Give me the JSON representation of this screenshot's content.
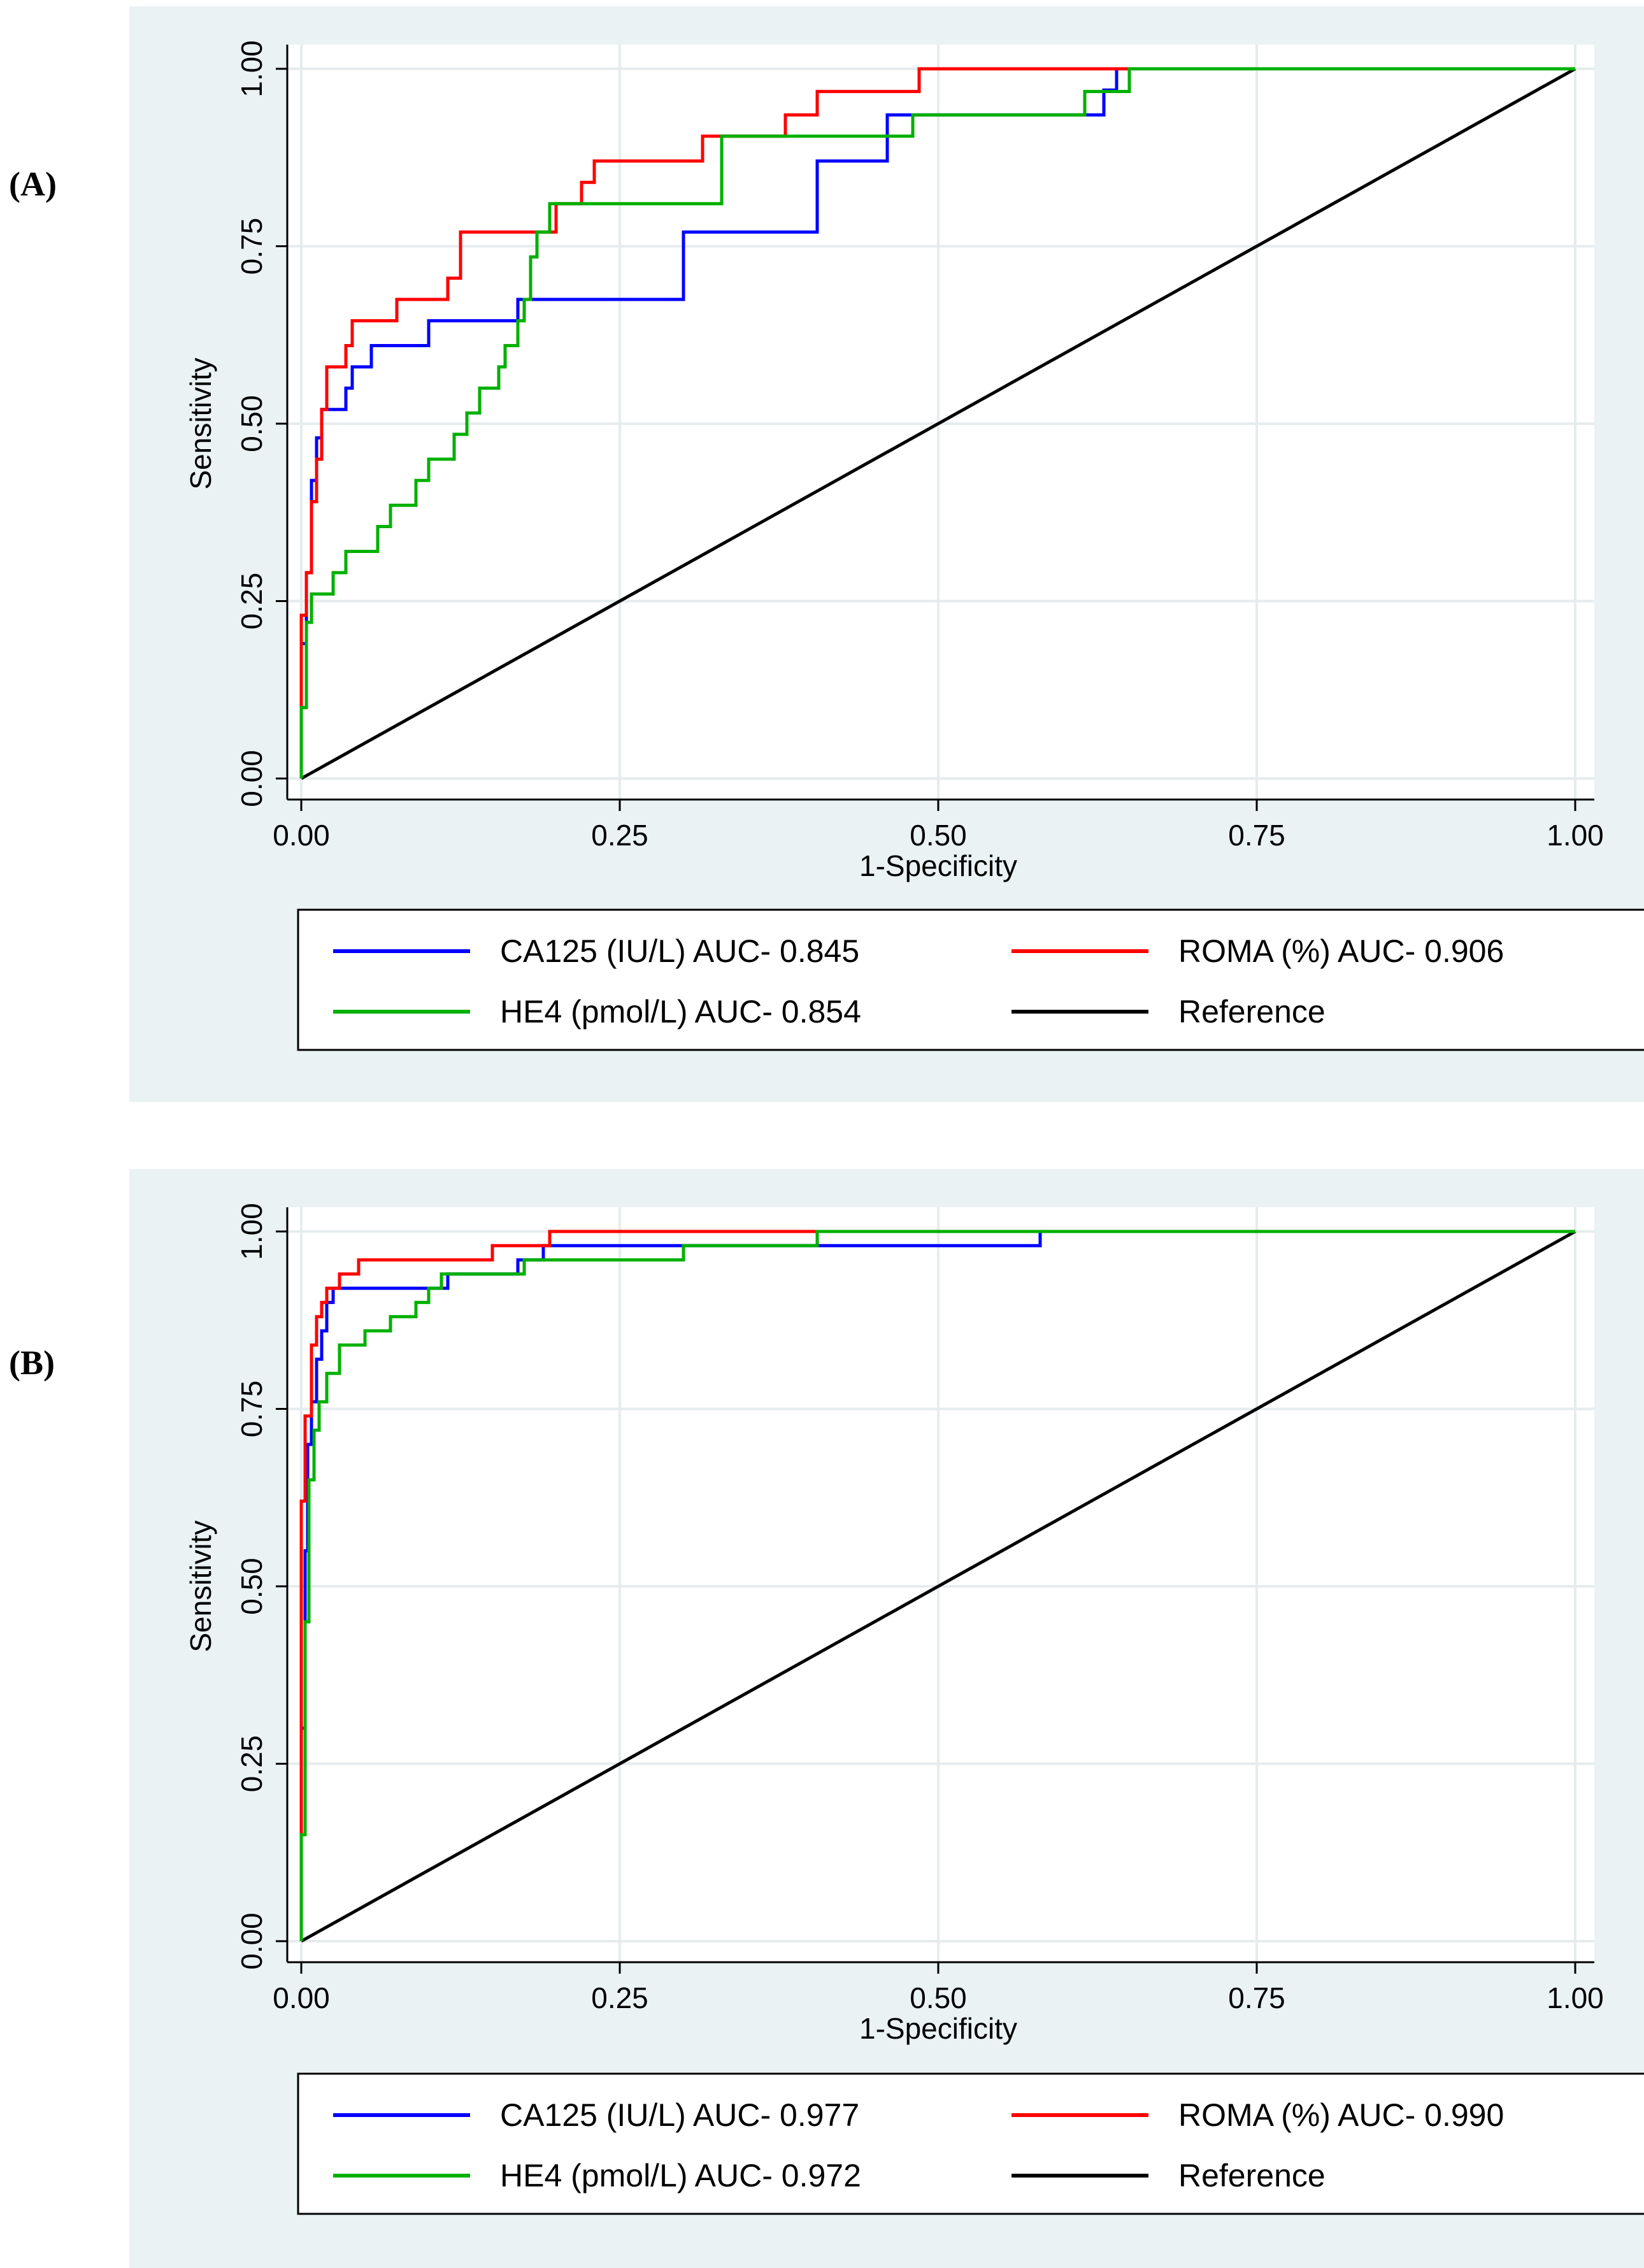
{
  "panels": [
    {
      "label": "(A)"
    },
    {
      "label": "(B)"
    }
  ],
  "chart_data": [
    {
      "type": "line",
      "panel_label": "(A)",
      "xlabel": "1-Specificity",
      "ylabel": "Sensitivity",
      "xlim": [
        0,
        1
      ],
      "ylim": [
        0,
        1
      ],
      "xticks": [
        "0.00",
        "0.25",
        "0.50",
        "0.75",
        "1.00"
      ],
      "yticks": [
        "0.00",
        "0.25",
        "0.50",
        "0.75",
        "1.00"
      ],
      "grid": true,
      "legend_position": "bottom",
      "series": [
        {
          "name": "CA125 (IU/L) AUC- 0.845",
          "color": "#0000ff",
          "step": true,
          "points": [
            [
              0,
              0
            ],
            [
              0,
              0.19
            ],
            [
              0.004,
              0.19
            ],
            [
              0.004,
              0.29
            ],
            [
              0.008,
              0.29
            ],
            [
              0.008,
              0.42
            ],
            [
              0.012,
              0.42
            ],
            [
              0.012,
              0.48
            ],
            [
              0.016,
              0.48
            ],
            [
              0.016,
              0.52
            ],
            [
              0.035,
              0.52
            ],
            [
              0.035,
              0.55
            ],
            [
              0.04,
              0.55
            ],
            [
              0.04,
              0.58
            ],
            [
              0.055,
              0.58
            ],
            [
              0.055,
              0.61
            ],
            [
              0.1,
              0.61
            ],
            [
              0.1,
              0.645
            ],
            [
              0.17,
              0.645
            ],
            [
              0.17,
              0.675
            ],
            [
              0.3,
              0.675
            ],
            [
              0.3,
              0.77
            ],
            [
              0.405,
              0.77
            ],
            [
              0.405,
              0.87
            ],
            [
              0.46,
              0.87
            ],
            [
              0.46,
              0.935
            ],
            [
              0.63,
              0.935
            ],
            [
              0.63,
              0.97
            ],
            [
              0.64,
              0.97
            ],
            [
              0.64,
              1.0
            ],
            [
              1,
              1
            ]
          ]
        },
        {
          "name": "ROMA (%) AUC- 0.906",
          "color": "#ff0000",
          "step": true,
          "points": [
            [
              0,
              0
            ],
            [
              0,
              0.23
            ],
            [
              0.004,
              0.23
            ],
            [
              0.004,
              0.29
            ],
            [
              0.008,
              0.29
            ],
            [
              0.008,
              0.39
            ],
            [
              0.012,
              0.39
            ],
            [
              0.012,
              0.45
            ],
            [
              0.016,
              0.45
            ],
            [
              0.016,
              0.52
            ],
            [
              0.02,
              0.52
            ],
            [
              0.02,
              0.58
            ],
            [
              0.035,
              0.58
            ],
            [
              0.035,
              0.61
            ],
            [
              0.04,
              0.61
            ],
            [
              0.04,
              0.645
            ],
            [
              0.075,
              0.645
            ],
            [
              0.075,
              0.675
            ],
            [
              0.115,
              0.675
            ],
            [
              0.115,
              0.705
            ],
            [
              0.125,
              0.705
            ],
            [
              0.125,
              0.77
            ],
            [
              0.2,
              0.77
            ],
            [
              0.2,
              0.81
            ],
            [
              0.22,
              0.81
            ],
            [
              0.22,
              0.84
            ],
            [
              0.23,
              0.84
            ],
            [
              0.23,
              0.87
            ],
            [
              0.315,
              0.87
            ],
            [
              0.315,
              0.905
            ],
            [
              0.38,
              0.905
            ],
            [
              0.38,
              0.935
            ],
            [
              0.405,
              0.935
            ],
            [
              0.405,
              0.968
            ],
            [
              0.485,
              0.968
            ],
            [
              0.485,
              1.0
            ],
            [
              1,
              1
            ]
          ]
        },
        {
          "name": "HE4 (pmol/L) AUC- 0.854",
          "color": "#00b000",
          "step": true,
          "points": [
            [
              0,
              0
            ],
            [
              0,
              0.1
            ],
            [
              0.004,
              0.1
            ],
            [
              0.004,
              0.22
            ],
            [
              0.008,
              0.22
            ],
            [
              0.008,
              0.26
            ],
            [
              0.025,
              0.26
            ],
            [
              0.025,
              0.29
            ],
            [
              0.035,
              0.29
            ],
            [
              0.035,
              0.32
            ],
            [
              0.06,
              0.32
            ],
            [
              0.06,
              0.355
            ],
            [
              0.07,
              0.355
            ],
            [
              0.07,
              0.385
            ],
            [
              0.09,
              0.385
            ],
            [
              0.09,
              0.42
            ],
            [
              0.1,
              0.42
            ],
            [
              0.1,
              0.45
            ],
            [
              0.12,
              0.45
            ],
            [
              0.12,
              0.485
            ],
            [
              0.13,
              0.485
            ],
            [
              0.13,
              0.515
            ],
            [
              0.14,
              0.515
            ],
            [
              0.14,
              0.55
            ],
            [
              0.155,
              0.55
            ],
            [
              0.155,
              0.58
            ],
            [
              0.16,
              0.58
            ],
            [
              0.16,
              0.61
            ],
            [
              0.17,
              0.61
            ],
            [
              0.17,
              0.645
            ],
            [
              0.175,
              0.645
            ],
            [
              0.175,
              0.675
            ],
            [
              0.18,
              0.675
            ],
            [
              0.18,
              0.735
            ],
            [
              0.185,
              0.735
            ],
            [
              0.185,
              0.77
            ],
            [
              0.195,
              0.77
            ],
            [
              0.195,
              0.81
            ],
            [
              0.33,
              0.81
            ],
            [
              0.33,
              0.905
            ],
            [
              0.48,
              0.905
            ],
            [
              0.48,
              0.935
            ],
            [
              0.615,
              0.935
            ],
            [
              0.615,
              0.968
            ],
            [
              0.65,
              0.968
            ],
            [
              0.65,
              1.0
            ],
            [
              1,
              1
            ]
          ]
        },
        {
          "name": "Reference",
          "color": "#000000",
          "step": false,
          "points": [
            [
              0,
              0
            ],
            [
              1,
              1
            ]
          ]
        }
      ]
    },
    {
      "type": "line",
      "panel_label": "(B)",
      "xlabel": "1-Specificity",
      "ylabel": "Sensitivity",
      "xlim": [
        0,
        1
      ],
      "ylim": [
        0,
        1
      ],
      "xticks": [
        "0.00",
        "0.25",
        "0.50",
        "0.75",
        "1.00"
      ],
      "yticks": [
        "0.00",
        "0.25",
        "0.50",
        "0.75",
        "1.00"
      ],
      "grid": true,
      "legend_position": "bottom",
      "series": [
        {
          "name": "CA125 (IU/L) AUC- 0.977",
          "color": "#0000ff",
          "step": true,
          "points": [
            [
              0,
              0
            ],
            [
              0,
              0.3
            ],
            [
              0.003,
              0.3
            ],
            [
              0.003,
              0.55
            ],
            [
              0.005,
              0.55
            ],
            [
              0.005,
              0.7
            ],
            [
              0.008,
              0.7
            ],
            [
              0.008,
              0.76
            ],
            [
              0.012,
              0.76
            ],
            [
              0.012,
              0.82
            ],
            [
              0.016,
              0.82
            ],
            [
              0.016,
              0.86
            ],
            [
              0.02,
              0.86
            ],
            [
              0.02,
              0.9
            ],
            [
              0.025,
              0.9
            ],
            [
              0.025,
              0.92
            ],
            [
              0.115,
              0.92
            ],
            [
              0.115,
              0.94
            ],
            [
              0.17,
              0.94
            ],
            [
              0.17,
              0.96
            ],
            [
              0.19,
              0.96
            ],
            [
              0.19,
              0.98
            ],
            [
              0.58,
              0.98
            ],
            [
              0.58,
              1.0
            ],
            [
              1,
              1
            ]
          ]
        },
        {
          "name": "ROMA (%) AUC- 0.990",
          "color": "#ff0000",
          "step": true,
          "points": [
            [
              0,
              0
            ],
            [
              0,
              0.62
            ],
            [
              0.003,
              0.62
            ],
            [
              0.003,
              0.74
            ],
            [
              0.008,
              0.74
            ],
            [
              0.008,
              0.84
            ],
            [
              0.012,
              0.84
            ],
            [
              0.012,
              0.88
            ],
            [
              0.016,
              0.88
            ],
            [
              0.016,
              0.9
            ],
            [
              0.02,
              0.9
            ],
            [
              0.02,
              0.92
            ],
            [
              0.03,
              0.92
            ],
            [
              0.03,
              0.94
            ],
            [
              0.045,
              0.94
            ],
            [
              0.045,
              0.96
            ],
            [
              0.15,
              0.96
            ],
            [
              0.15,
              0.98
            ],
            [
              0.195,
              0.98
            ],
            [
              0.195,
              1.0
            ],
            [
              1,
              1
            ]
          ]
        },
        {
          "name": "HE4 (pmol/L) AUC- 0.972",
          "color": "#00b000",
          "step": true,
          "points": [
            [
              0,
              0
            ],
            [
              0,
              0.15
            ],
            [
              0.003,
              0.15
            ],
            [
              0.003,
              0.45
            ],
            [
              0.006,
              0.45
            ],
            [
              0.006,
              0.65
            ],
            [
              0.01,
              0.65
            ],
            [
              0.01,
              0.72
            ],
            [
              0.014,
              0.72
            ],
            [
              0.014,
              0.76
            ],
            [
              0.02,
              0.76
            ],
            [
              0.02,
              0.8
            ],
            [
              0.03,
              0.8
            ],
            [
              0.03,
              0.84
            ],
            [
              0.05,
              0.84
            ],
            [
              0.05,
              0.86
            ],
            [
              0.07,
              0.86
            ],
            [
              0.07,
              0.88
            ],
            [
              0.09,
              0.88
            ],
            [
              0.09,
              0.9
            ],
            [
              0.1,
              0.9
            ],
            [
              0.1,
              0.92
            ],
            [
              0.11,
              0.92
            ],
            [
              0.11,
              0.94
            ],
            [
              0.175,
              0.94
            ],
            [
              0.175,
              0.96
            ],
            [
              0.3,
              0.96
            ],
            [
              0.3,
              0.98
            ],
            [
              0.405,
              0.98
            ],
            [
              0.405,
              1.0
            ],
            [
              1,
              1
            ]
          ]
        },
        {
          "name": "Reference",
          "color": "#000000",
          "step": false,
          "points": [
            [
              0,
              0
            ],
            [
              1,
              1
            ]
          ]
        }
      ]
    }
  ]
}
